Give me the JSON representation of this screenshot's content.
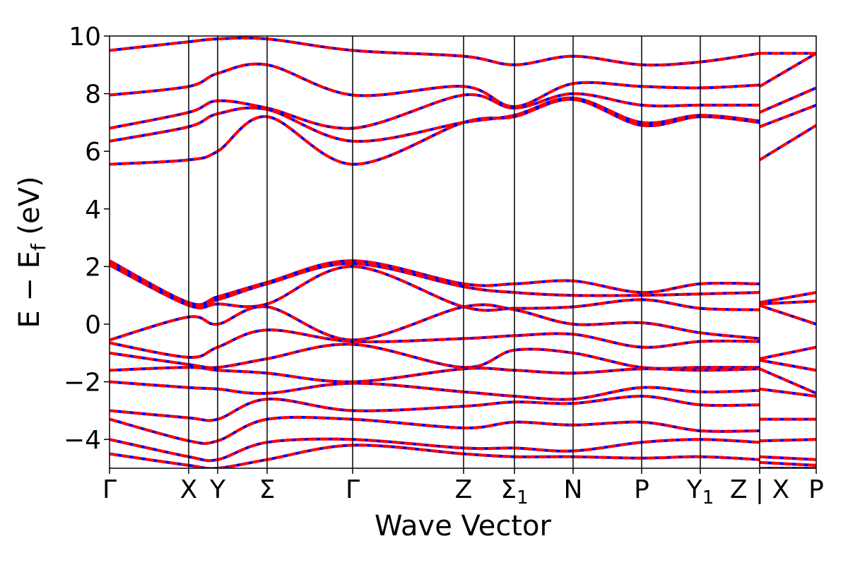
{
  "chart_data": {
    "type": "line",
    "title": "",
    "xlabel": "Wave Vector",
    "ylabel": "E − E_f (eV)",
    "ylabel_parts": {
      "pre": "E − E",
      "sub": "f",
      "post": " (eV)"
    },
    "ylim": [
      -5,
      10
    ],
    "yticks": [
      -4,
      -2,
      0,
      2,
      4,
      6,
      8,
      10
    ],
    "ytick_labels": [
      "−4",
      "−2",
      "0",
      "2",
      "4",
      "6",
      "8",
      "10"
    ],
    "xlim": [
      0,
      1
    ],
    "kpoints": [
      {
        "label": "Γ",
        "x": 0.0
      },
      {
        "label": "X",
        "x": 0.112
      },
      {
        "label": "Y",
        "x": 0.153
      },
      {
        "label": "Σ",
        "x": 0.223
      },
      {
        "label": "Γ",
        "x": 0.344
      },
      {
        "label": "Z",
        "x": 0.501
      },
      {
        "label": "Σ",
        "sub": "1",
        "x": 0.573
      },
      {
        "label": "N",
        "x": 0.656
      },
      {
        "label": "P",
        "x": 0.753
      },
      {
        "label": "Y",
        "sub": "1",
        "x": 0.836
      },
      {
        "label": "Z | X",
        "x": 0.92
      },
      {
        "label": "P",
        "x": 1.0
      }
    ],
    "grid": false,
    "legend": "none",
    "series": [
      {
        "style": "red solid (overlay)",
        "color": "#ff0000"
      },
      {
        "style": "blue dotted (underlay)",
        "color": "#0000ff"
      }
    ],
    "bands": [
      {
        "x": [
          0,
          0.112,
          0.153,
          0.223,
          0.344,
          0.501,
          0.573,
          0.656,
          0.753,
          0.836,
          0.92,
          0.92,
          1.0
        ],
        "y": [
          5.55,
          5.7,
          6.0,
          7.2,
          5.55,
          7.0,
          7.2,
          7.8,
          6.9,
          7.2,
          7.0,
          5.7,
          6.9
        ]
      },
      {
        "x": [
          0,
          0.112,
          0.153,
          0.223,
          0.344,
          0.501,
          0.573,
          0.656,
          0.753,
          0.836,
          0.92,
          0.92,
          1.0
        ],
        "y": [
          6.35,
          6.85,
          7.3,
          7.45,
          6.35,
          7.0,
          7.25,
          7.85,
          7.0,
          7.25,
          7.05,
          6.85,
          7.6
        ]
      },
      {
        "x": [
          0,
          0.112,
          0.153,
          0.223,
          0.344,
          0.501,
          0.573,
          0.656,
          0.753,
          0.836,
          0.92,
          0.92,
          1.0
        ],
        "y": [
          6.8,
          7.35,
          7.75,
          7.5,
          6.8,
          7.95,
          7.5,
          8.0,
          7.6,
          7.6,
          7.6,
          7.35,
          8.2
        ]
      },
      {
        "x": [
          0,
          0.112,
          0.153,
          0.223,
          0.344,
          0.501,
          0.573,
          0.656,
          0.753,
          0.836,
          0.92,
          0.92,
          1.0
        ],
        "y": [
          7.95,
          8.25,
          8.7,
          9.0,
          7.95,
          8.25,
          7.55,
          8.35,
          8.25,
          8.2,
          8.3,
          8.25,
          9.4
        ]
      },
      {
        "x": [
          0,
          0.112,
          0.153,
          0.223,
          0.344,
          0.501,
          0.573,
          0.656,
          0.753,
          0.836,
          0.92,
          0.92,
          1.0
        ],
        "y": [
          9.5,
          9.8,
          9.9,
          9.9,
          9.5,
          9.3,
          9.0,
          9.3,
          9.0,
          9.1,
          9.4,
          9.4,
          9.4
        ]
      },
      {
        "x": [
          0,
          0.112,
          0.153,
          0.223,
          0.344,
          0.501,
          0.573,
          0.656,
          0.753,
          0.836,
          0.92,
          0.92,
          1.0
        ],
        "y": [
          2.2,
          0.75,
          0.95,
          1.45,
          2.2,
          1.4,
          1.4,
          1.5,
          1.1,
          1.4,
          1.4,
          0.75,
          1.1
        ]
      },
      {
        "x": [
          0,
          0.112,
          0.153,
          0.223,
          0.344,
          0.501,
          0.573,
          0.656,
          0.753,
          0.836,
          0.92,
          0.92,
          1.0
        ],
        "y": [
          2.1,
          0.7,
          0.85,
          1.4,
          2.1,
          1.3,
          1.1,
          1.0,
          1.0,
          1.05,
          1.1,
          0.7,
          0.8
        ]
      },
      {
        "x": [
          0,
          0.112,
          0.153,
          0.223,
          0.344,
          0.501,
          0.573,
          0.656,
          0.753,
          0.836,
          0.92,
          0.92,
          1.0
        ],
        "y": [
          2.05,
          0.65,
          0.7,
          0.7,
          2.0,
          0.6,
          0.55,
          0.6,
          0.85,
          0.55,
          0.5,
          0.65,
          0.0
        ]
      },
      {
        "x": [
          0,
          0.112,
          0.153,
          0.223,
          0.344,
          0.501,
          0.573,
          0.656,
          0.753,
          0.836,
          0.92,
          0.92,
          1.0
        ],
        "y": [
          -0.55,
          0.25,
          0.0,
          0.6,
          -0.55,
          0.6,
          0.5,
          0.0,
          0.05,
          -0.3,
          -0.5,
          -1.2,
          -0.8
        ]
      },
      {
        "x": [
          0,
          0.112,
          0.153,
          0.223,
          0.344,
          0.501,
          0.573,
          0.656,
          0.753,
          0.836,
          0.92,
          0.92,
          1.0
        ],
        "y": [
          -0.65,
          -1.15,
          -0.8,
          -0.2,
          -0.6,
          -0.5,
          -0.4,
          -0.35,
          -0.8,
          -0.6,
          -0.6,
          -1.25,
          -1.6
        ]
      },
      {
        "x": [
          0,
          0.112,
          0.153,
          0.223,
          0.344,
          0.501,
          0.573,
          0.656,
          0.753,
          0.836,
          0.92,
          0.92,
          1.0
        ],
        "y": [
          -1.0,
          -1.4,
          -1.5,
          -1.2,
          -0.7,
          -1.5,
          -0.9,
          -1.0,
          -1.5,
          -1.5,
          -1.5,
          -1.55,
          -2.4
        ]
      },
      {
        "x": [
          0,
          0.112,
          0.153,
          0.223,
          0.344,
          0.501,
          0.573,
          0.656,
          0.753,
          0.836,
          0.92,
          0.92,
          1.0
        ],
        "y": [
          -1.6,
          -1.5,
          -1.6,
          -1.7,
          -2.0,
          -1.55,
          -1.6,
          -1.7,
          -1.55,
          -1.6,
          -1.55,
          -2.25,
          -2.5
        ]
      },
      {
        "x": [
          0,
          0.112,
          0.153,
          0.223,
          0.344,
          0.501,
          0.573,
          0.656,
          0.753,
          0.836,
          0.92,
          0.92,
          1.0
        ],
        "y": [
          -2.0,
          -2.2,
          -2.25,
          -2.4,
          -2.05,
          -2.35,
          -2.5,
          -2.6,
          -2.2,
          -2.35,
          -2.3,
          -3.3,
          -3.3
        ]
      },
      {
        "x": [
          0,
          0.112,
          0.153,
          0.223,
          0.344,
          0.501,
          0.573,
          0.656,
          0.753,
          0.836,
          0.92,
          0.92,
          1.0
        ],
        "y": [
          -3.0,
          -3.25,
          -3.3,
          -2.6,
          -3.0,
          -2.85,
          -2.7,
          -2.75,
          -2.5,
          -2.8,
          -2.8,
          -4.05,
          -4.0
        ]
      },
      {
        "x": [
          0,
          0.112,
          0.153,
          0.223,
          0.344,
          0.501,
          0.573,
          0.656,
          0.753,
          0.836,
          0.92,
          0.92,
          1.0
        ],
        "y": [
          -3.3,
          -4.05,
          -4.05,
          -3.3,
          -3.3,
          -3.6,
          -3.4,
          -3.5,
          -3.4,
          -3.7,
          -3.7,
          -4.6,
          -4.7
        ]
      },
      {
        "x": [
          0,
          0.112,
          0.153,
          0.223,
          0.344,
          0.501,
          0.573,
          0.656,
          0.753,
          0.836,
          0.92,
          0.92,
          1.0
        ],
        "y": [
          -4.0,
          -4.6,
          -4.7,
          -4.1,
          -4.0,
          -4.3,
          -4.3,
          -4.4,
          -4.1,
          -4.0,
          -4.1,
          -4.8,
          -4.9
        ]
      },
      {
        "x": [
          0,
          0.112,
          0.153,
          0.223,
          0.344,
          0.501,
          0.573,
          0.656,
          0.753,
          0.836,
          0.92,
          0.92,
          1.0
        ],
        "y": [
          -4.5,
          -4.9,
          -5.0,
          -4.7,
          -4.2,
          -4.5,
          -4.6,
          -4.6,
          -4.65,
          -4.6,
          -4.7,
          -5.0,
          -5.0
        ]
      }
    ]
  }
}
